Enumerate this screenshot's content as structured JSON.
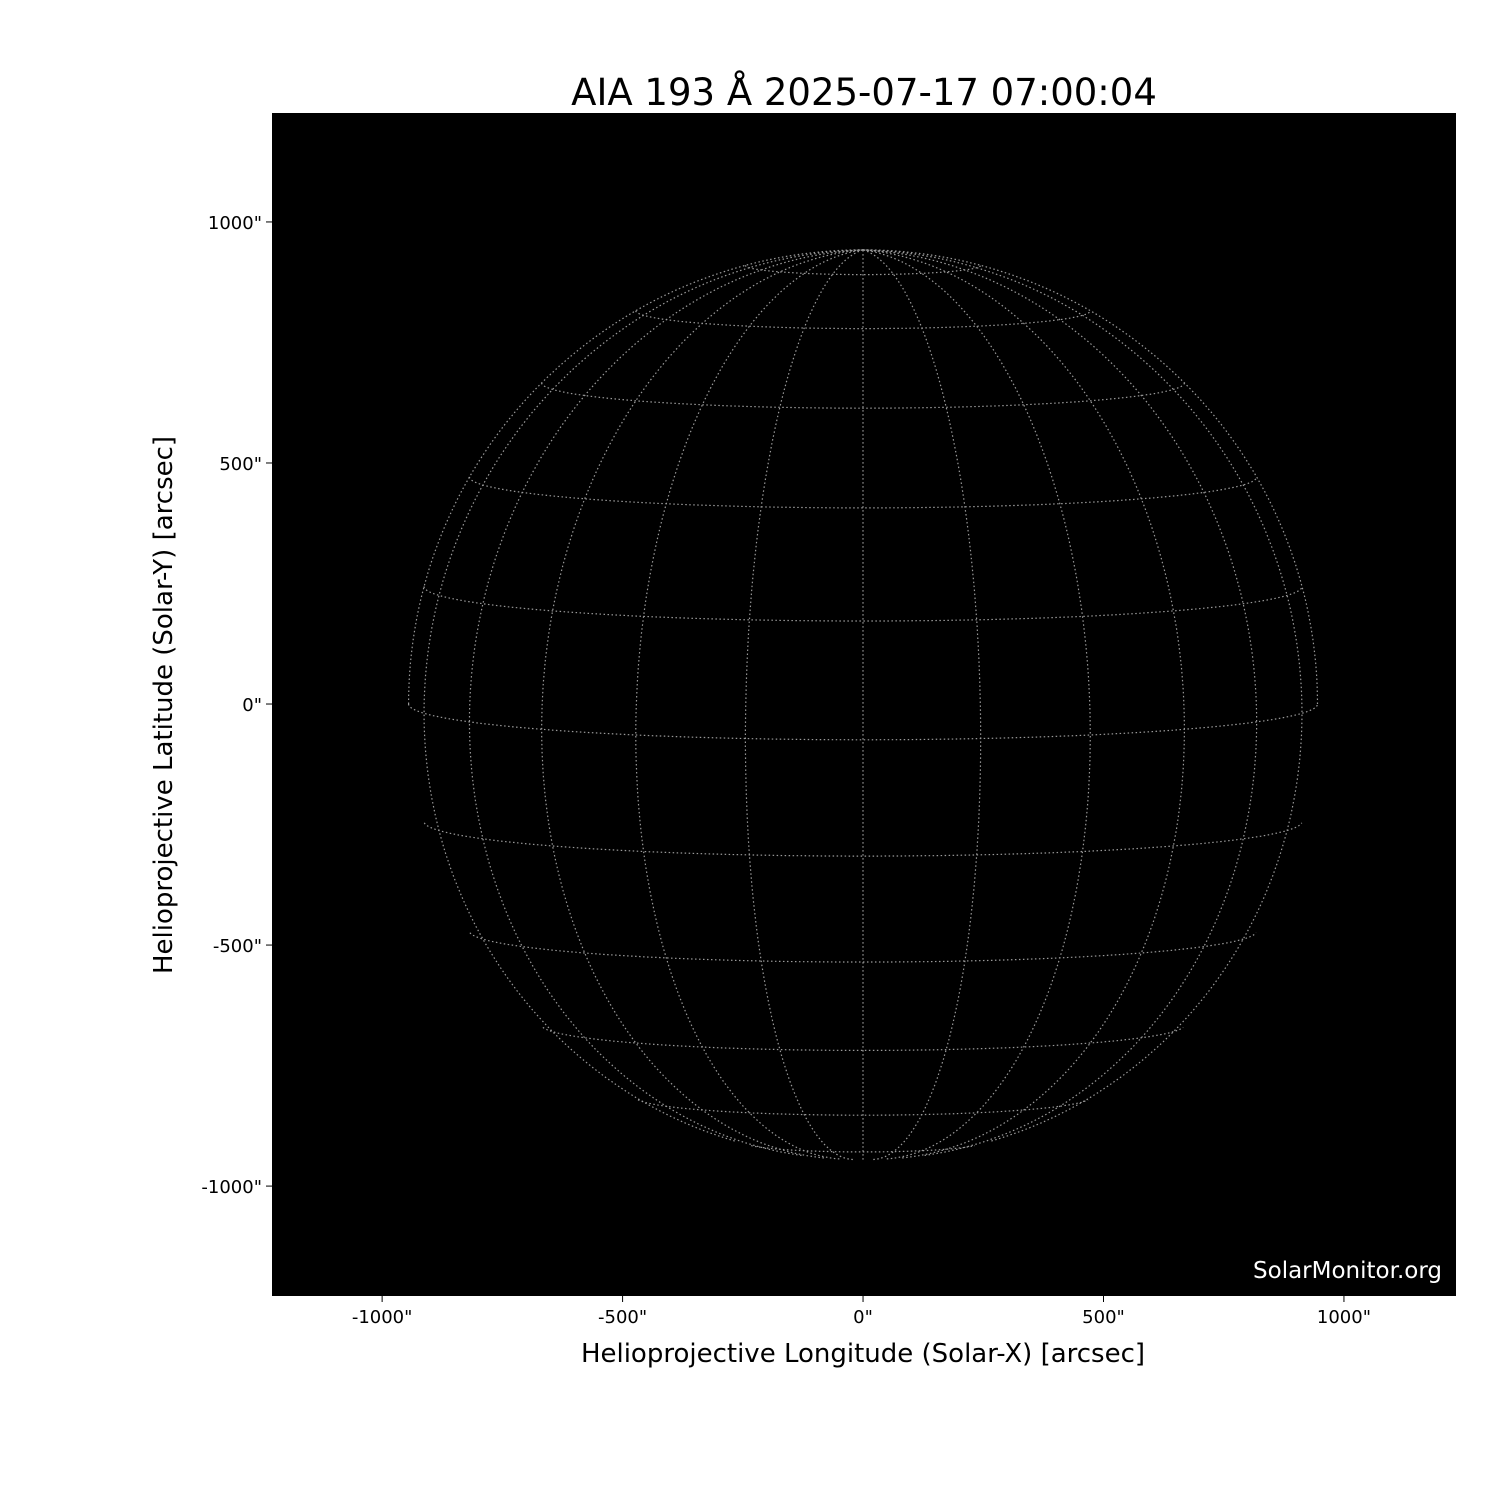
{
  "chart_data": {
    "type": "image",
    "title": "AIA 193 Å 2025-07-17 07:00:04",
    "xlabel": "Helioprojective Longitude (Solar-X) [arcsec]",
    "ylabel": "Helioprojective Latitude (Solar-Y) [arcsec]",
    "xlim": [
      -1229,
      1233
    ],
    "ylim": [
      -1228,
      1226
    ],
    "xticks": [
      {
        "value": -1000,
        "label": "-1000\""
      },
      {
        "value": -500,
        "label": "-500\""
      },
      {
        "value": 0,
        "label": "0\""
      },
      {
        "value": 500,
        "label": "500\""
      },
      {
        "value": 1000,
        "label": "1000\""
      }
    ],
    "yticks": [
      {
        "value": 1000,
        "label": "1000\""
      },
      {
        "value": 500,
        "label": "500\""
      },
      {
        "value": 0,
        "label": "0\""
      },
      {
        "value": -500,
        "label": "-500\""
      },
      {
        "value": -1000,
        "label": "-1000\""
      }
    ],
    "solar_radius_arcsec": 945,
    "b0_deg": 4.5,
    "grid_spacing_deg": 15,
    "background_color": "#000000",
    "grid_color": "#9a9a9a",
    "watermark": "SolarMonitor.org"
  }
}
